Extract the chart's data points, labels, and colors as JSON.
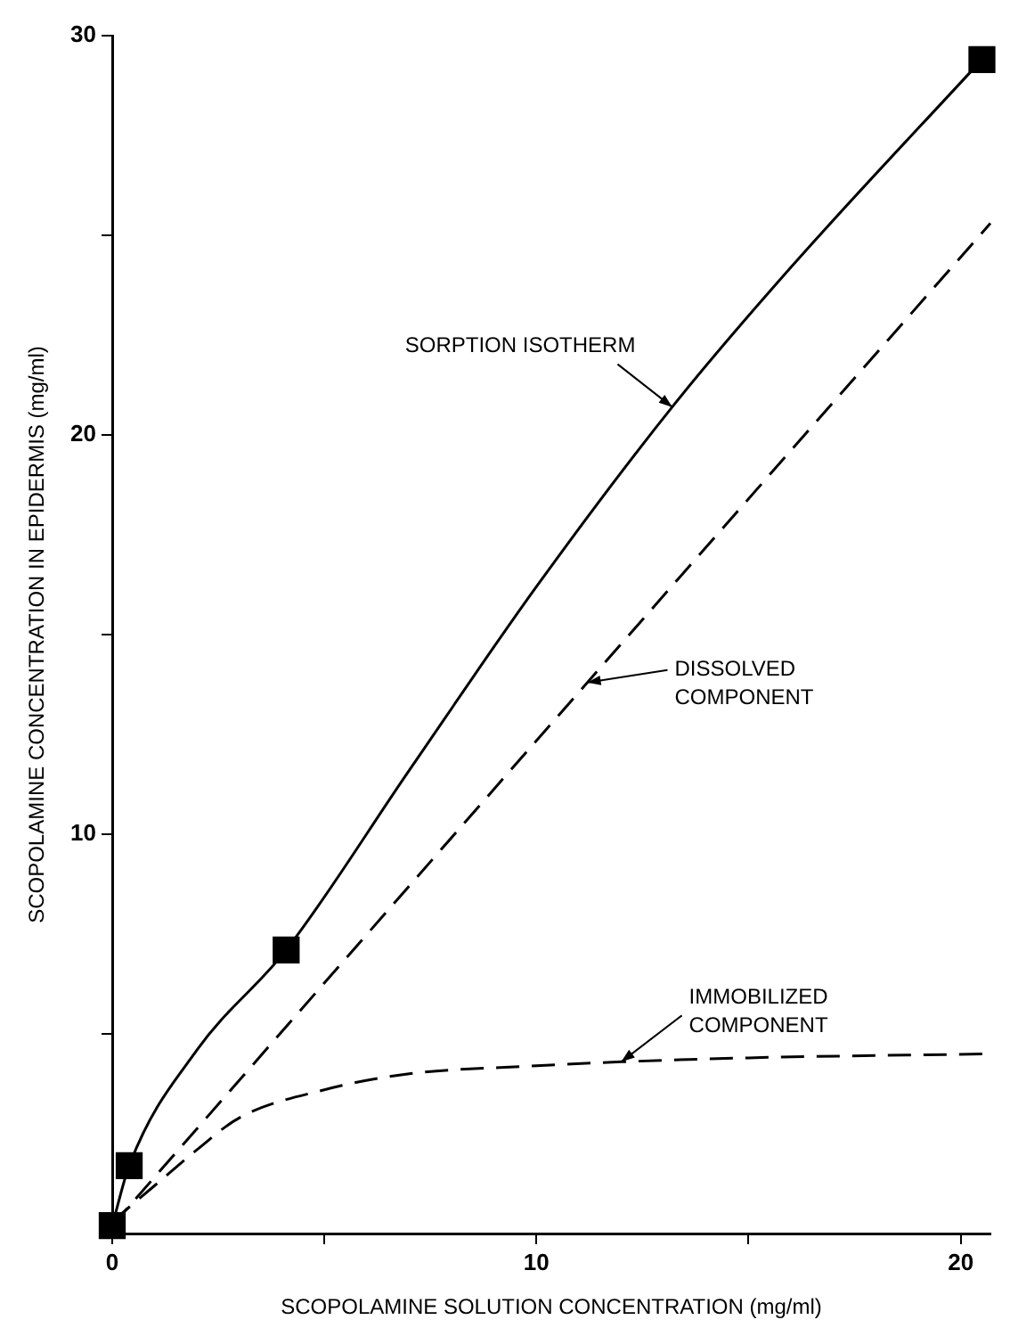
{
  "chart_data": {
    "type": "line",
    "xlabel": "SCOPOLAMINE SOLUTION CONCENTRATION (mg/ml)",
    "ylabel": "SCOPOLAMINE CONCENTRATION IN EPIDERMIS (mg/ml)",
    "series": [
      {
        "type": "line",
        "color": "#000000",
        "line_style": "solid",
        "marker": "none",
        "x": [
          0,
          0.4,
          2,
          4.1,
          7,
          10,
          13.2,
          16,
          20.5
        ],
        "values": [
          0.2,
          1.7,
          4.6,
          7.1,
          11.6,
          16.2,
          20.7,
          24.2,
          29.4
        ]
      },
      {
        "type": "line",
        "color": "#000000",
        "line_style": "dashed",
        "marker": "none",
        "x": [
          0,
          11.2,
          20.7
        ],
        "values": [
          0.2,
          13.8,
          25.3
        ]
      },
      {
        "type": "line",
        "color": "#000000",
        "line_style": "dashed",
        "marker": "none",
        "x": [
          0,
          1,
          2,
          3,
          5,
          7,
          10,
          12,
          15,
          20.7
        ],
        "values": [
          0.3,
          1.2,
          2.1,
          2.9,
          3.6,
          4.0,
          4.2,
          4.3,
          4.4,
          4.5
        ]
      },
      {
        "type": "scatter",
        "color": "#000000",
        "marker": "square",
        "x": [
          0,
          0.4,
          4.1,
          20.5
        ],
        "values": [
          0.2,
          1.7,
          7.1,
          29.4
        ]
      }
    ],
    "xlim": [
      0,
      20.7
    ],
    "xticks": [
      0,
      {
        "value": 5,
        "label": null
      },
      10,
      {
        "value": 15,
        "label": null
      },
      20
    ],
    "ylim": [
      0,
      30
    ],
    "yticks": [
      {
        "value": 5,
        "label": null
      },
      10,
      {
        "value": 15,
        "label": null
      },
      20,
      {
        "value": 25,
        "label": null
      },
      30
    ],
    "grid": false,
    "legend": false,
    "annotations": [
      {
        "text": "SORPTION ISOTHERM",
        "x": 13.2,
        "y": 20.7
      },
      {
        "text": "DISSOLVED\nCOMPONENT",
        "x": 11.2,
        "y": 13.8
      },
      {
        "text": "IMMOBILIZED\nCOMPONENT",
        "x": 12,
        "y": 4.3
      }
    ]
  }
}
